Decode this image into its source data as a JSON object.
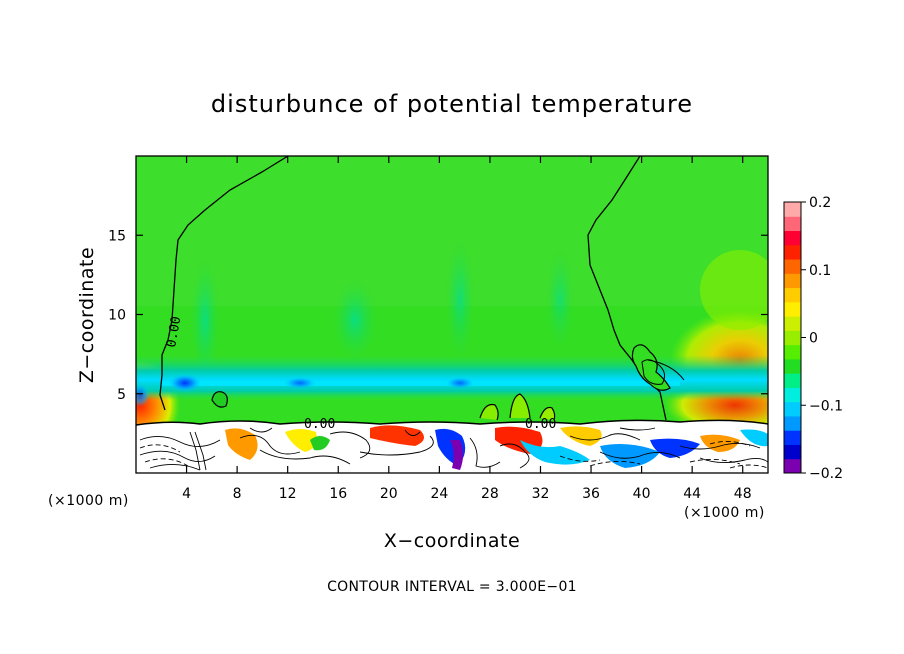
{
  "chart_data": {
    "type": "heatmap",
    "title": "disturbunce of potential temperature",
    "xlabel": "X−coordinate",
    "ylabel": "Z−coordinate",
    "x_unit": "(×1000 m)",
    "y_unit": "(×1000 m)",
    "xlim": [
      0,
      50
    ],
    "ylim": [
      0,
      20
    ],
    "x_ticks": [
      4,
      8,
      12,
      16,
      20,
      24,
      28,
      32,
      36,
      40,
      44,
      48
    ],
    "x_tick_labels": [
      "4",
      "8",
      "12",
      "16",
      "20",
      "24",
      "28",
      "32",
      "36",
      "40",
      "44",
      "48"
    ],
    "y_ticks": [
      5,
      10,
      15
    ],
    "y_tick_labels": [
      "5",
      "10",
      "15"
    ],
    "colorbar": {
      "range": [
        -0.2,
        0.2
      ],
      "ticks": [
        0.2,
        0.1,
        0,
        -0.1,
        -0.2
      ],
      "tick_labels": [
        "0.2",
        "0.1",
        "0",
        "−0.1",
        "−0.2"
      ],
      "colors": [
        "#7a00b0",
        "#0000cc",
        "#0033ff",
        "#0099ff",
        "#00ccff",
        "#00eedd",
        "#00ee88",
        "#22dd22",
        "#55ee00",
        "#99ee00",
        "#ccee00",
        "#ffee00",
        "#ffcc00",
        "#ff9900",
        "#ff6600",
        "#ff2200",
        "#ff0033",
        "#ff6677",
        "#ffaaaa"
      ]
    },
    "contour_labels": [
      "0.00",
      "0.00",
      "0.00"
    ],
    "contour_interval_text": "CONTOUR INTERVAL = 3.000E−01",
    "field_summary": {
      "background_value": 0.0,
      "cool_band_z": [
        5.0,
        6.5
      ],
      "cool_band_value": -0.08,
      "warm_left_boundary_z": [
        3.5,
        5.5
      ],
      "warm_right_boundary_z": [
        4,
        8
      ],
      "turbulent_layer_z": [
        0,
        3.2
      ]
    }
  }
}
